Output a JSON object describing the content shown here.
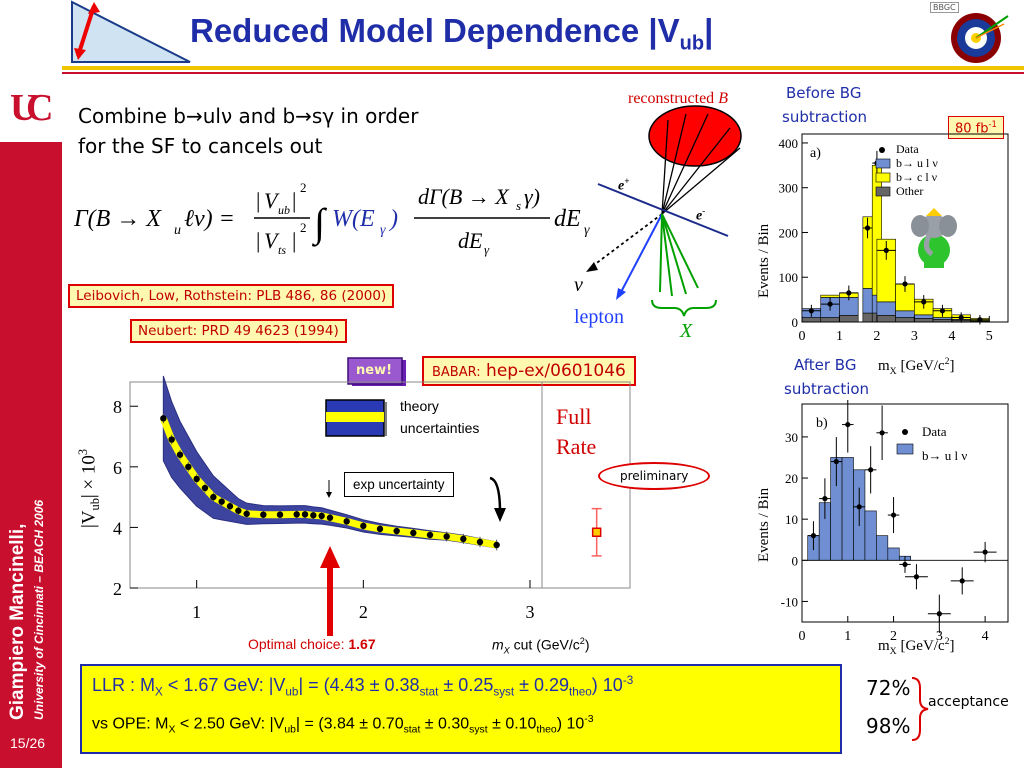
{
  "slide": {
    "title_main": "Reduced Model Dependence |V",
    "title_sub": "ub",
    "title_end": "|",
    "page_number": "15/26",
    "author": "Giampiero Mancinelli,",
    "affiliation": "University of Cincinnati – BEACH 2006",
    "bbc_badge": "BBGC"
  },
  "intro": {
    "line1": "Combine b→ulν and b→sγ in order",
    "line2": "for the SF to cancels out"
  },
  "references": {
    "ref1": "Leibovich, Low, Rothstein: PLB 486, 86 (2000)",
    "ref2": "Neubert: PRD 49 4623 (1994)",
    "babar_label": "BABAR:",
    "babar_ref": "hep-ex/0601046",
    "new_badge": "new!"
  },
  "diagram": {
    "reconstructed": "reconstructed",
    "reconstructed_B": "B",
    "e_plus": "e",
    "e_plus_sup": "+",
    "e_minus": "e",
    "e_minus_sup": "-",
    "nu": "ν",
    "lepton": "lepton",
    "X": "X"
  },
  "left_plot": {
    "ylabel": "|V",
    "ylabel_sub": "ub",
    "ylabel_end": "| × 10",
    "ylabel_sup": "3",
    "theory_legend_1": "theory",
    "theory_legend_2": "uncertainties",
    "exp_uncertainty": "exp uncertainty",
    "full_rate_1": "Full",
    "full_rate_2": "Rate",
    "preliminary": "preliminary",
    "optimal_label": "Optimal choice:",
    "optimal_value": "1.67",
    "xlabel_m": "m",
    "xlabel_X": "X",
    "xlabel_rest": " cut (GeV/c",
    "xlabel_sup": "2",
    "xlabel_close": ")",
    "yticks": [
      "2",
      "4",
      "6",
      "8"
    ],
    "xticks": [
      "1",
      "2",
      "3"
    ]
  },
  "top_right_plot": {
    "header_1": "Before BG",
    "header_2": "subtraction",
    "lumi": "80 fb",
    "lumi_sup": "-1",
    "panel": "a)",
    "ylabel": "Events / Bin",
    "legend": [
      "Data",
      "b→ u l ν",
      "b→ c l ν",
      "Other"
    ],
    "yticks": [
      "0",
      "100",
      "200",
      "300",
      "400"
    ],
    "xticks": [
      "0",
      "1",
      "2",
      "3",
      "4",
      "5"
    ],
    "xlabel": "m",
    "xlabel_sub": "X",
    "xlabel_unit": " [GeV/c",
    "xlabel_sup": "2",
    "xlabel_close": "]"
  },
  "bottom_right_plot": {
    "header_1": "After BG",
    "header_2": "subtraction",
    "panel": "b)",
    "ylabel": "Events / Bin",
    "legend": [
      "Data",
      "b→ u l ν"
    ],
    "yticks": [
      "-10",
      "0",
      "10",
      "20",
      "30"
    ],
    "xticks": [
      "0",
      "1",
      "2",
      "3",
      "4"
    ],
    "xlabel": "m",
    "xlabel_sub": "X",
    "xlabel_unit": " [GeV/c",
    "xlabel_sup": "2",
    "xlabel_close": "]"
  },
  "results": {
    "llr_prefix": "LLR : M",
    "llr_sub": "X",
    "llr_cut": " < 1.67 GeV:   |V",
    "llr_vub_sub": "ub",
    "llr_eq": "| = (4.43 ± 0.38",
    "stat": "stat",
    "llr_syst_val": " ± 0.25",
    "syst": "syst",
    "llr_theo_val": " ± 0.29",
    "theo": "theo",
    "llr_exp": ") 10",
    "exp_sup": "-3",
    "ope_prefix": "vs OPE: M",
    "ope_cut": " < 2.50 GeV:   |V",
    "ope_eq": "| = (3.84 ± 0.70",
    "ope_syst_val": " ± 0.30",
    "ope_theo_val": " ± 0.10",
    "acc1": "72%",
    "acc2": "98%",
    "acceptance": "acceptance"
  },
  "chart_data": [
    {
      "type": "line",
      "title": "",
      "xlabel": "mX cut (GeV/c2)",
      "ylabel": "|Vub| x 10^3",
      "xlim": [
        0.6,
        3.6
      ],
      "ylim": [
        2,
        8.8
      ],
      "series": [
        {
          "name": "theory uncertainties",
          "x": [
            0.8,
            0.85,
            0.9,
            0.95,
            1.0,
            1.05,
            1.1,
            1.15,
            1.2,
            1.25,
            1.3,
            1.4,
            1.5,
            1.6,
            1.65,
            1.7,
            1.75,
            1.8,
            1.9,
            2.0,
            2.1,
            2.2,
            2.3,
            2.4,
            2.5,
            2.6,
            2.7,
            2.8
          ],
          "y": [
            7.6,
            6.9,
            6.4,
            6.0,
            5.6,
            5.3,
            5.0,
            4.85,
            4.7,
            4.55,
            4.45,
            4.42,
            4.42,
            4.43,
            4.43,
            4.4,
            4.38,
            4.32,
            4.2,
            4.05,
            3.95,
            3.88,
            3.82,
            3.75,
            3.7,
            3.62,
            3.52,
            3.42
          ],
          "band": [
            1.4,
            1.25,
            1.1,
            1.0,
            0.9,
            0.8,
            0.7,
            0.6,
            0.5,
            0.4,
            0.35,
            0.3,
            0.29,
            0.29,
            0.29,
            0.28,
            0.27,
            0.25,
            0.22,
            0.2,
            0.18,
            0.16,
            0.15,
            0.14,
            0.12,
            0.12,
            0.11,
            0.1
          ]
        },
        {
          "name": "Full Rate",
          "x": [
            3.4
          ],
          "y": [
            3.84
          ],
          "err": [
            0.78
          ]
        }
      ],
      "annotations": [
        "Optimal choice: 1.67",
        "exp uncertainty",
        "preliminary"
      ]
    },
    {
      "type": "bar",
      "title": "",
      "xlabel": "mX [GeV/c2]",
      "ylabel": "Events / Bin",
      "xlim": [
        0,
        5.5
      ],
      "ylim": [
        0,
        420
      ],
      "categories": [
        0.25,
        0.75,
        1.25,
        1.75,
        2.0,
        2.25,
        2.75,
        3.25,
        3.75,
        4.25,
        4.75
      ],
      "series": [
        {
          "name": "Other",
          "values": [
            10,
            10,
            15,
            20,
            20,
            15,
            10,
            8,
            6,
            4,
            2
          ]
        },
        {
          "name": "b→ u l ν",
          "values": [
            20,
            45,
            40,
            55,
            40,
            30,
            15,
            8,
            4,
            2,
            1
          ]
        },
        {
          "name": "b→ c l ν",
          "values": [
            0,
            5,
            10,
            160,
            290,
            140,
            60,
            35,
            20,
            10,
            5
          ]
        },
        {
          "name": "Data",
          "values": [
            25,
            40,
            65,
            210,
            355,
            160,
            85,
            45,
            25,
            10,
            5
          ]
        }
      ]
    },
    {
      "type": "bar",
      "title": "",
      "xlabel": "mX [GeV/c2]",
      "ylabel": "Events / Bin",
      "xlim": [
        0,
        4.5
      ],
      "ylim": [
        -15,
        38
      ],
      "categories": [
        0.25,
        0.5,
        0.75,
        1.0,
        1.25,
        1.5,
        1.75,
        2.0,
        2.25,
        2.5,
        3.0,
        3.5,
        4.0
      ],
      "series": [
        {
          "name": "b→ u l ν",
          "values": [
            6,
            14,
            25,
            25,
            22,
            12,
            6,
            3,
            1,
            0,
            0,
            0,
            0
          ]
        },
        {
          "name": "Data",
          "values": [
            6,
            15,
            24,
            33,
            13,
            22,
            31,
            11,
            -1,
            -4,
            -13,
            -5,
            2
          ]
        }
      ]
    }
  ]
}
